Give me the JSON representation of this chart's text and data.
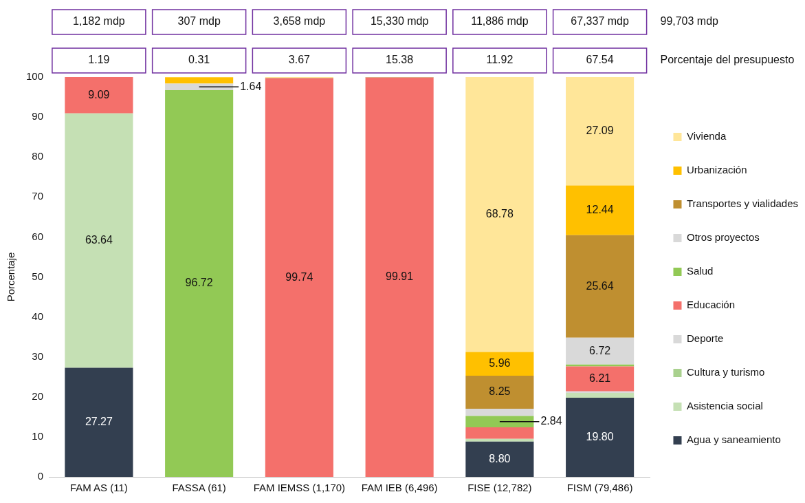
{
  "chart_data": {
    "type": "bar",
    "stacked": true,
    "ylabel": "Porcentaje",
    "categories": [
      "FAM AS (11)",
      "FASSA (61)",
      "FAM IEMSS (1,170)",
      "FAM IEB (6,496)",
      "FISE (12,782)",
      "FISM (79,486)"
    ],
    "ylim": [
      0,
      100
    ],
    "yticks": [
      0,
      10,
      20,
      30,
      40,
      50,
      60,
      70,
      80,
      90,
      100
    ],
    "grid": false,
    "legend": "right",
    "series": [
      {
        "name": "Agua y saneamiento",
        "color": "#333f50",
        "values": [
          27.27,
          0,
          0,
          0,
          8.8,
          19.8
        ],
        "value_labels": [
          "27.27",
          null,
          null,
          null,
          "8.80",
          "19.80"
        ]
      },
      {
        "name": "Asistencia social",
        "color": "#c5e0b4",
        "values": [
          63.64,
          0,
          0,
          0,
          0.7,
          1.2
        ],
        "value_labels": [
          "63.64",
          null,
          null,
          null,
          null,
          null
        ]
      },
      {
        "name": "Cultura y turismo",
        "color": "#a9d18e",
        "values": [
          0,
          0,
          0,
          0,
          0,
          0
        ],
        "value_labels": [
          null,
          null,
          null,
          null,
          null,
          null
        ]
      },
      {
        "name": "Deporte",
        "color": "#d9d9d9",
        "values": [
          0,
          0,
          0,
          0,
          0,
          0.4
        ],
        "value_labels": [
          null,
          null,
          null,
          null,
          null,
          null
        ]
      },
      {
        "name": "Educación",
        "color": "#f4706b",
        "values": [
          9.09,
          0,
          99.74,
          99.91,
          2.9,
          6.21
        ],
        "value_labels": [
          "9.09",
          null,
          "99.74",
          "99.91",
          null,
          "6.21"
        ]
      },
      {
        "name": "Salud",
        "color": "#92c955",
        "values": [
          0,
          96.72,
          0.1,
          0.1,
          2.84,
          0.5
        ],
        "value_labels": [
          null,
          "96.72",
          null,
          null,
          "2.84",
          null
        ]
      },
      {
        "name": "Otros proyectos",
        "color": "#d9d9d9",
        "values": [
          0,
          1.64,
          0,
          0,
          1.8,
          6.72
        ],
        "value_labels": [
          null,
          "1.64",
          null,
          null,
          null,
          "6.72"
        ]
      },
      {
        "name": "Transportes y vialidades",
        "color": "#bf8f30",
        "values": [
          0,
          0,
          0,
          0,
          8.25,
          25.64
        ],
        "value_labels": [
          null,
          null,
          null,
          null,
          "8.25",
          "25.64"
        ]
      },
      {
        "name": "Urbanización",
        "color": "#ffc000",
        "values": [
          0,
          1.6,
          0,
          0,
          5.96,
          12.44
        ],
        "value_labels": [
          null,
          null,
          null,
          null,
          "5.96",
          "12.44"
        ]
      },
      {
        "name": "Vivienda",
        "color": "#ffe699",
        "values": [
          0,
          0,
          0.2,
          0,
          68.78,
          27.09
        ],
        "value_labels": [
          null,
          null,
          null,
          null,
          "68.78",
          "27.09"
        ]
      }
    ],
    "annotations": [
      "1,182 mdp",
      "307 mdp",
      "3,658 mdp",
      "15,330 mdp",
      "11,886 mdp",
      "67,337 mdp",
      "99,703 mdp",
      "1.19",
      "0.31",
      "3.67",
      "15.38",
      "11.92",
      "67.54",
      "Porcentaje del presupuesto"
    ]
  }
}
